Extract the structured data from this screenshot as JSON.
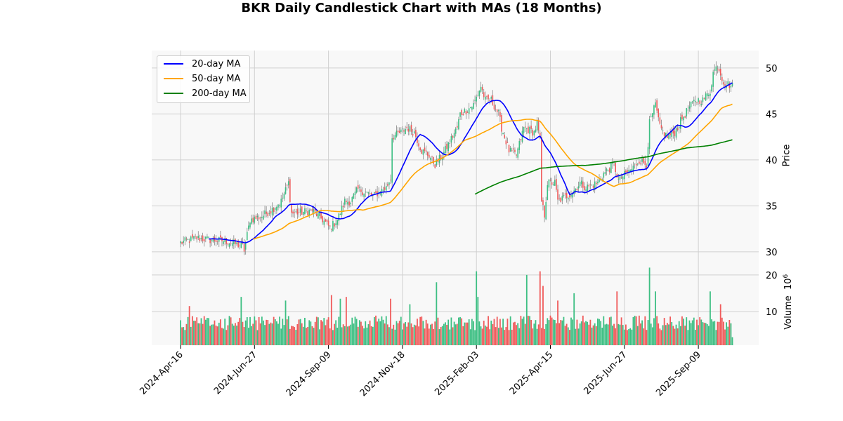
{
  "chart_data": {
    "type": "candlestick",
    "title": "BKR Daily Candlestick Chart with MAs (18 Months)",
    "price_ylabel": "Price",
    "volume_ylabel": "Volume",
    "volume_unit": "10",
    "volume_exp": "6",
    "price_ylim": [
      29.0,
      51.9
    ],
    "price_yticks": [
      30,
      35,
      40,
      45,
      50
    ],
    "volume_ylim": [
      0.8,
      23.8
    ],
    "volume_yticks": [
      10,
      20
    ],
    "n_days": 374,
    "x_ticks": [
      {
        "index": 0,
        "label": "2024-Apr-16"
      },
      {
        "index": 50,
        "label": "2024-Jun-27"
      },
      {
        "index": 100,
        "label": "2024-Sep-09"
      },
      {
        "index": 150,
        "label": "2024-Nov-18"
      },
      {
        "index": 200,
        "label": "2025-Feb-03"
      },
      {
        "index": 250,
        "label": "2025-Apr-15"
      },
      {
        "index": 300,
        "label": "2025-Jun-27"
      },
      {
        "index": 350,
        "label": "2025-Sep-09"
      }
    ],
    "close_anchors": [
      [
        0,
        31.0
      ],
      [
        11,
        31.5
      ],
      [
        20,
        31.3
      ],
      [
        30,
        31.2
      ],
      [
        42,
        30.6
      ],
      [
        43,
        30.2
      ],
      [
        47,
        33.5
      ],
      [
        54,
        33.8
      ],
      [
        61,
        34.5
      ],
      [
        68,
        35.5
      ],
      [
        73,
        37.5
      ],
      [
        75,
        34.2
      ],
      [
        82,
        34.3
      ],
      [
        89,
        34.5
      ],
      [
        96,
        33.5
      ],
      [
        101,
        32.6
      ],
      [
        106,
        33.5
      ],
      [
        111,
        35.5
      ],
      [
        115,
        35.5
      ],
      [
        120,
        36.8
      ],
      [
        125,
        36.5
      ],
      [
        130,
        36.0
      ],
      [
        134,
        36.5
      ],
      [
        139,
        37.0
      ],
      [
        142,
        38.0
      ],
      [
        143,
        42.5
      ],
      [
        149,
        43.0
      ],
      [
        153,
        43.5
      ],
      [
        158,
        43.0
      ],
      [
        163,
        41.0
      ],
      [
        168,
        40.5
      ],
      [
        172,
        39.5
      ],
      [
        177,
        40.5
      ],
      [
        182,
        42.0
      ],
      [
        187,
        43.5
      ],
      [
        189,
        45.0
      ],
      [
        194,
        45.5
      ],
      [
        198,
        46.0
      ],
      [
        203,
        48.0
      ],
      [
        206,
        46.5
      ],
      [
        210,
        46.5
      ],
      [
        215,
        45.0
      ],
      [
        217,
        43.5
      ],
      [
        222,
        41.0
      ],
      [
        227,
        40.5
      ],
      [
        232,
        43.5
      ],
      [
        239,
        43.0
      ],
      [
        241,
        44.0
      ],
      [
        243,
        42.0
      ],
      [
        244,
        35.5
      ],
      [
        246,
        34.0
      ],
      [
        248,
        37.5
      ],
      [
        253,
        37.5
      ],
      [
        255,
        35.5
      ],
      [
        260,
        36.0
      ],
      [
        265,
        36.5
      ],
      [
        270,
        37.5
      ],
      [
        274,
        37.0
      ],
      [
        282,
        37.5
      ],
      [
        286,
        38.5
      ],
      [
        293,
        39.5
      ],
      [
        296,
        37.8
      ],
      [
        301,
        38.5
      ],
      [
        305,
        39.0
      ],
      [
        310,
        40.0
      ],
      [
        315,
        39.5
      ],
      [
        317,
        44.0
      ],
      [
        321,
        46.0
      ],
      [
        324,
        43.5
      ],
      [
        329,
        42.5
      ],
      [
        334,
        43.0
      ],
      [
        339,
        44.5
      ],
      [
        343,
        45.5
      ],
      [
        348,
        46.5
      ],
      [
        353,
        46.5
      ],
      [
        358,
        47.5
      ],
      [
        360,
        49.5
      ],
      [
        363,
        50.3
      ],
      [
        367,
        48.5
      ],
      [
        373,
        48.0
      ]
    ],
    "volume_base": 6.5,
    "volume_spikes": [
      [
        6,
        11.5
      ],
      [
        41,
        14
      ],
      [
        71,
        13
      ],
      [
        102,
        14.5
      ],
      [
        108,
        13.5
      ],
      [
        112,
        14
      ],
      [
        142,
        13.5
      ],
      [
        155,
        12
      ],
      [
        173,
        18
      ],
      [
        200,
        21
      ],
      [
        201,
        14
      ],
      [
        234,
        20
      ],
      [
        243,
        21
      ],
      [
        245,
        17
      ],
      [
        255,
        13
      ],
      [
        266,
        15
      ],
      [
        295,
        15.5
      ],
      [
        317,
        22
      ],
      [
        321,
        15.5
      ],
      [
        358,
        15.5
      ],
      [
        365,
        12
      ],
      [
        373,
        3
      ]
    ],
    "series": [
      {
        "name": "20-day MA",
        "window": 20,
        "color": "#0000ff"
      },
      {
        "name": "50-day MA",
        "window": 50,
        "color": "#ffa500"
      },
      {
        "name": "200-day MA",
        "window": 200,
        "color": "#008000"
      }
    ],
    "up_color": "#3dbf83",
    "down_color": "#f05a5a",
    "legend_position": "upper-left",
    "grid": true
  }
}
